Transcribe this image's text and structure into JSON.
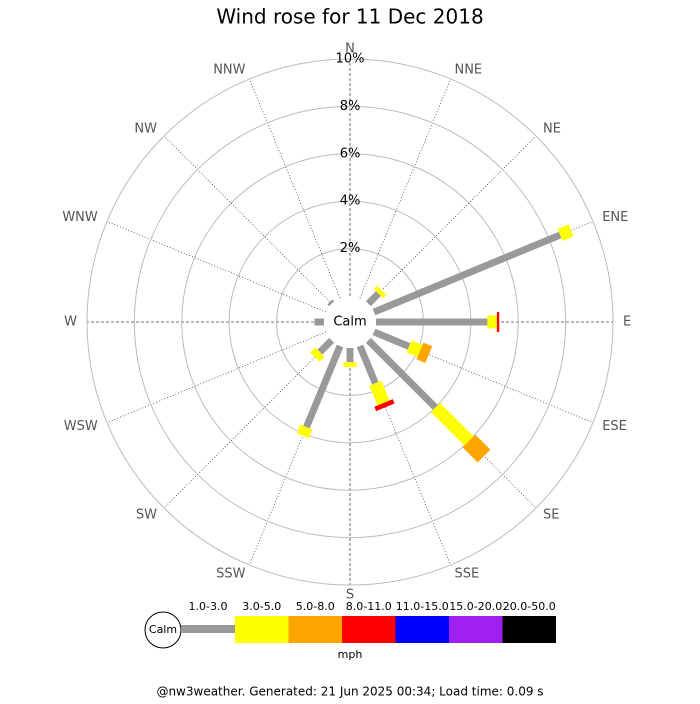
{
  "chart_data": {
    "type": "windrose",
    "title": "Wind rose for 11 Dec 2018",
    "calm_label": "Calm",
    "categories": [
      "N",
      "NNE",
      "NE",
      "ENE",
      "E",
      "ESE",
      "SE",
      "SSE",
      "S",
      "SSW",
      "SW",
      "WSW",
      "W",
      "WNW",
      "NW",
      "NNW"
    ],
    "rlim": [
      0,
      10
    ],
    "rticks": [
      {
        "value": 2,
        "label": "2%"
      },
      {
        "value": 4,
        "label": "4%"
      },
      {
        "value": 6,
        "label": "6%"
      },
      {
        "value": 8,
        "label": "8%"
      },
      {
        "value": 10,
        "label": "10%"
      }
    ],
    "series": [
      {
        "name": "1.0-3.0",
        "color": "#999999",
        "values": [
          0,
          0,
          0.6,
          8.5,
          4.7,
          1.6,
          4.0,
          1.7,
          0.6,
          3.7,
          0.7,
          0,
          0.4,
          0,
          0.1,
          0
        ]
      },
      {
        "name": "3.0-5.0",
        "color": "#ffff00",
        "values": [
          0,
          0,
          0.2,
          0.5,
          0.4,
          0.5,
          2.0,
          0.9,
          0.2,
          0.4,
          0.3,
          0,
          0,
          0,
          0,
          0
        ]
      },
      {
        "name": "5.0-8.0",
        "color": "#ffa500",
        "values": [
          0,
          0,
          0,
          0,
          0,
          0.4,
          0.9,
          0,
          0,
          0,
          0,
          0,
          0,
          0,
          0,
          0
        ]
      },
      {
        "name": "8.0-11.0",
        "color": "#ff0000",
        "values": [
          0,
          0,
          0,
          0,
          0.1,
          0,
          0,
          0.2,
          0,
          0,
          0,
          0,
          0,
          0,
          0,
          0
        ]
      },
      {
        "name": "11.0-15.0",
        "color": "#0000ff",
        "values": [
          0,
          0,
          0,
          0,
          0,
          0,
          0,
          0,
          0,
          0,
          0,
          0,
          0,
          0,
          0,
          0
        ]
      },
      {
        "name": "15.0-20.0",
        "color": "#a020f0",
        "values": [
          0,
          0,
          0,
          0,
          0,
          0,
          0,
          0,
          0,
          0,
          0,
          0,
          0,
          0,
          0,
          0
        ]
      },
      {
        "name": "20.0-50.0",
        "color": "#000000",
        "values": [
          0,
          0,
          0,
          0,
          0,
          0,
          0,
          0,
          0,
          0,
          0,
          0,
          0,
          0,
          0,
          0
        ]
      }
    ],
    "unit_label": "mph",
    "footer": "@nw3weather. Generated: 21 Jun 2025 00:34; Load time: 0.09 s"
  }
}
